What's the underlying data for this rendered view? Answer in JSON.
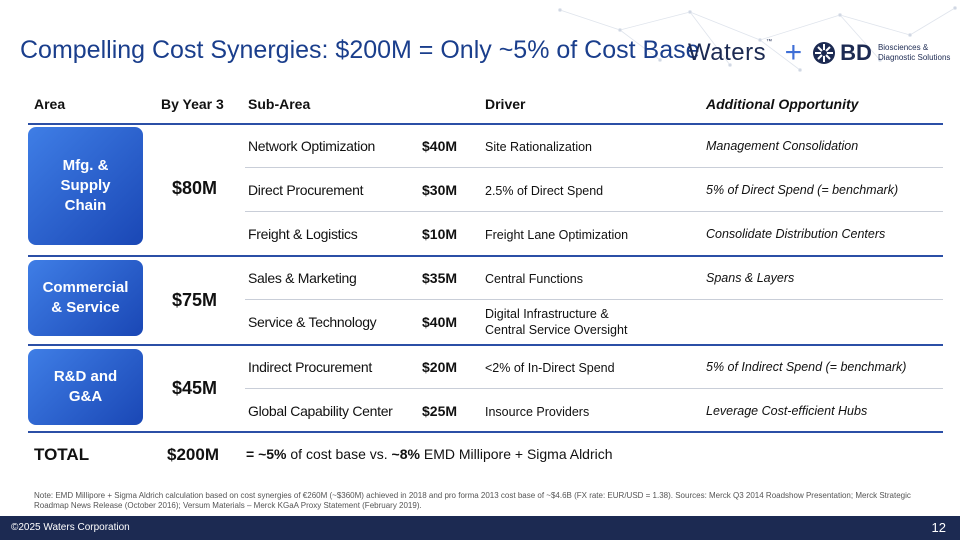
{
  "title": "Compelling Cost Synergies: $200M = Only ~5% of Cost Base",
  "logos": {
    "waters": "Waters",
    "waters_tm": "™",
    "plus": "+",
    "bd": "BD",
    "bd_sub_line1": "Biosciences &",
    "bd_sub_line2": "Diagnostic Solutions"
  },
  "headers": {
    "area": "Area",
    "by_year_3": "By Year 3",
    "sub_area": "Sub-Area",
    "driver": "Driver",
    "additional_opportunity": "Additional Opportunity"
  },
  "groups": [
    {
      "area_line1": "Mfg. &",
      "area_line2": "Supply",
      "area_line3": "Chain",
      "year3": "$80M"
    },
    {
      "area_line1": "Commercial",
      "area_line2": "& Service",
      "year3": "$75M"
    },
    {
      "area_line1": "R&D and",
      "area_line2": "G&A",
      "year3": "$45M"
    }
  ],
  "rows": [
    {
      "sub_area": "Network Optimization",
      "amount": "$40M",
      "driver": "Site Rationalization",
      "opportunity": "Management Consolidation"
    },
    {
      "sub_area": "Direct Procurement",
      "amount": "$30M",
      "driver": "2.5% of Direct Spend",
      "opportunity": "5% of Direct Spend (= benchmark)"
    },
    {
      "sub_area": "Freight & Logistics",
      "amount": "$10M",
      "driver": "Freight Lane Optimization",
      "opportunity": "Consolidate Distribution Centers"
    },
    {
      "sub_area": "Sales & Marketing",
      "amount": "$35M",
      "driver": "Central Functions",
      "opportunity": "Spans & Layers"
    },
    {
      "sub_area": "Service & Technology",
      "amount": "$40M",
      "driver_line1": "Digital Infrastructure &",
      "driver_line2": "Central Service Oversight",
      "opportunity": ""
    },
    {
      "sub_area": "Indirect Procurement",
      "amount": "$20M",
      "driver": "<2% of In-Direct Spend",
      "opportunity": "5% of Indirect Spend (= benchmark)"
    },
    {
      "sub_area": "Global Capability Center",
      "amount": "$25M",
      "driver": "Insource Providers",
      "opportunity": "Leverage Cost-efficient Hubs"
    }
  ],
  "total": {
    "label": "TOTAL",
    "amount": "$200M",
    "note_prefix": "= ~5%",
    "note_mid": " of cost base vs. ",
    "note_bold2": "~8%",
    "note_suffix": " EMD Millipore + Sigma Aldrich"
  },
  "note": "Note: EMD Millipore + Sigma Aldrich calculation based on cost synergies of €260M (~$360M) achieved in 2018 and pro forma 2013 cost base of ~$4.6B (FX rate: EUR/USD = 1.38). Sources: Merck Q3 2014 Roadshow Presentation; Merck Strategic Roadmap News Release (October 2016); Versum Materials – Merck KGaA Proxy Statement (February 2019).",
  "footer": {
    "copyright": "©2025 Waters Corporation",
    "page": "12"
  },
  "colors": {
    "title": "#1a3e8c",
    "accent": "#2b4fa6",
    "box": "#1a47b5",
    "footer": "#1c2a52"
  }
}
